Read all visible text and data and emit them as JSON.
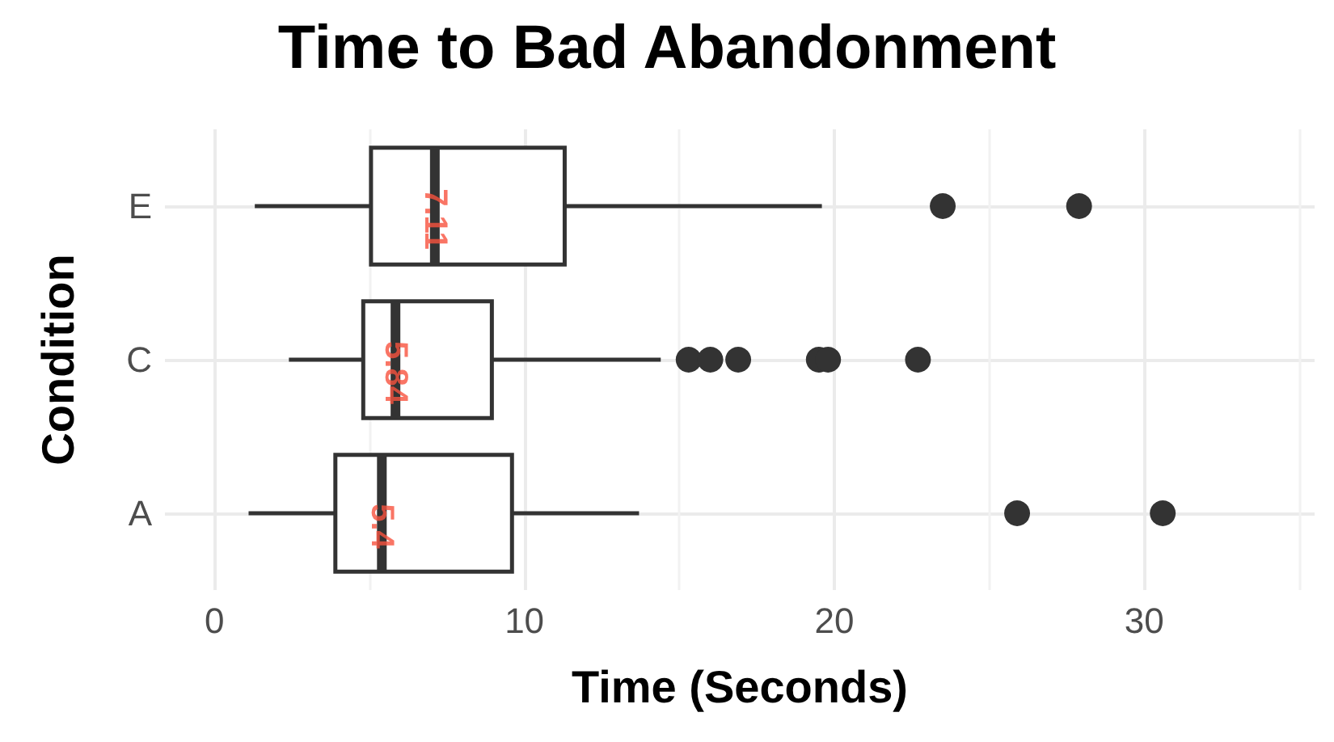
{
  "chart_data": {
    "type": "box",
    "orientation": "horizontal",
    "title": "Time to Bad Abandonment",
    "xlabel": "Time (Seconds)",
    "ylabel": "Condition",
    "categories": [
      "E",
      "C",
      "A"
    ],
    "boxes": [
      {
        "low": 1.3,
        "q1": 5.05,
        "median": 7.11,
        "q3": 11.3,
        "high": 19.6,
        "outliers": [
          23.5,
          27.9
        ]
      },
      {
        "low": 2.4,
        "q1": 4.8,
        "median": 5.84,
        "q3": 8.95,
        "high": 14.4,
        "outliers": [
          15.3,
          16.0,
          16.9,
          19.5,
          19.8,
          22.7
        ]
      },
      {
        "low": 1.1,
        "q1": 3.9,
        "median": 5.4,
        "q3": 9.6,
        "high": 13.7,
        "outliers": [
          25.9,
          30.6
        ]
      }
    ],
    "color": "#333333",
    "annotations": [
      {
        "text": "7.11",
        "x": 7.11,
        "y": "E"
      },
      {
        "text": "5.84",
        "x": 5.84,
        "y": "C"
      },
      {
        "text": "5.4",
        "x": 5.4,
        "y": "A"
      }
    ],
    "xlim": [
      -1.6,
      35.5
    ],
    "xticks": [
      0,
      10,
      20,
      30
    ],
    "grid": true
  }
}
